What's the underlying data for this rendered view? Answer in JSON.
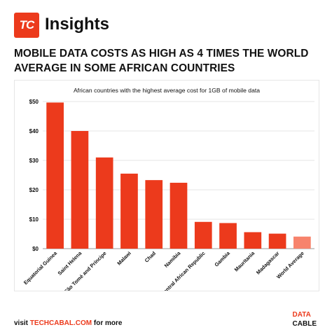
{
  "header": {
    "logo_text": "TC",
    "brand": "Insights",
    "headline": "MOBILE DATA COSTS AS HIGH AS 4 TIMES THE WORLD AVERAGE IN SOME AFRICAN COUNTRIES"
  },
  "footer": {
    "prefix": "visit",
    "site": "TECHCABAL.COM",
    "suffix": "for more",
    "badge_line1": "DATA",
    "badge_line2": "CABLE"
  },
  "colors": {
    "accent": "#ec3a1c",
    "highlight": "#f7836c"
  },
  "chart_data": {
    "type": "bar",
    "title": "African countries with the highest average cost for 1GB of mobile data",
    "xlabel": "",
    "ylabel": "",
    "ylim": [
      0,
      50
    ],
    "yticks": [
      "$0",
      "$10",
      "$20",
      "$30",
      "$40",
      "$50"
    ],
    "grid": true,
    "categories": [
      "Equatorial Guinea",
      "Saint Helena",
      "São Tomé and Príncipe",
      "Malawi",
      "Chad",
      "Namibia",
      "Central African Republic",
      "Gambia",
      "Mauritania",
      "Madagascar",
      "World Average"
    ],
    "values": [
      49.67,
      40.0,
      31.0,
      25.5,
      23.3,
      22.4,
      9.1,
      8.7,
      5.6,
      5.1,
      4.1
    ],
    "highlight_category": "World Average"
  }
}
